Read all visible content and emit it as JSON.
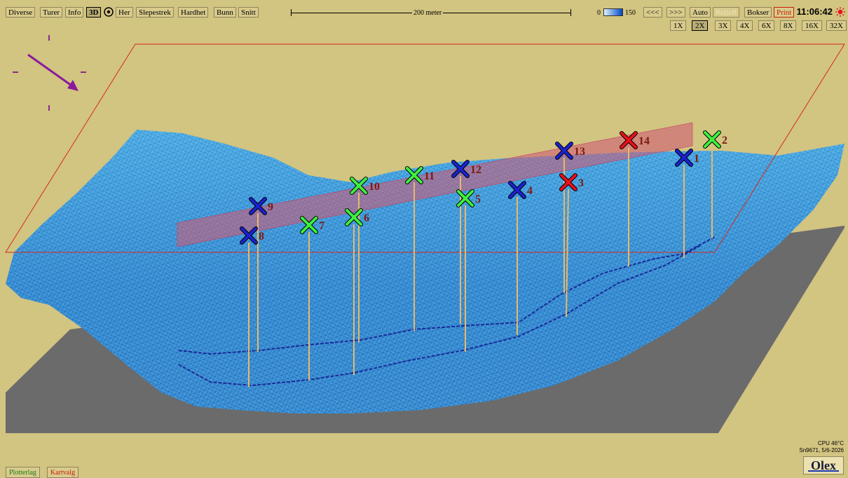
{
  "toolbar": {
    "menu": [
      "Diverse",
      "Turer",
      "Info",
      "3D",
      "Her",
      "Slepestrek",
      "Hardhet",
      "Bunn",
      "Snitt"
    ],
    "scale_label": "200 meter",
    "depth_min": "0",
    "depth_max": "150",
    "nav_back": "<<<",
    "nav_forward": ">>>",
    "auto": "Auto",
    "relieff": "Relieff",
    "bokser": "Bokser",
    "print": "Print",
    "clock": "11:06:42"
  },
  "zoom": [
    "1X",
    "2X",
    "3X",
    "4X",
    "6X",
    "8X",
    "16X",
    "32X"
  ],
  "zoom_selected": "2X",
  "status": {
    "cpu": "CPU 46°C",
    "serial": "Sn9671, 5/6-2026"
  },
  "logo": "Olex",
  "bottom_tabs": [
    "Plotterlag",
    "Kartvalg"
  ],
  "colors": {
    "background": "#d2c481",
    "terrain": "#3a9ad6",
    "red": "#e8101a",
    "green": "#3ef03e",
    "blue": "#1a22d0",
    "stick": "#e8b86a",
    "band": "#d0607a"
  },
  "markers": [
    {
      "label": "1",
      "color": "blue"
    },
    {
      "label": "2",
      "color": "green"
    },
    {
      "label": "3",
      "color": "red"
    },
    {
      "label": "4",
      "color": "blue"
    },
    {
      "label": "5",
      "color": "green"
    },
    {
      "label": "6",
      "color": "green"
    },
    {
      "label": "7",
      "color": "green"
    },
    {
      "label": "8",
      "color": "blue"
    },
    {
      "label": "9",
      "color": "blue"
    },
    {
      "label": "10",
      "color": "green"
    },
    {
      "label": "11",
      "color": "green"
    },
    {
      "label": "12",
      "color": "blue"
    },
    {
      "label": "13",
      "color": "blue"
    },
    {
      "label": "14",
      "color": "red"
    }
  ]
}
